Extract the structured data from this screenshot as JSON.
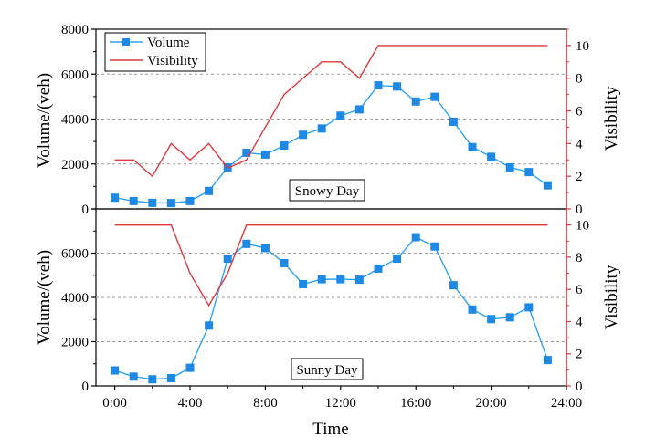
{
  "chart_data": {
    "type": "line",
    "xlabel": "Time",
    "x_tick_labels": [
      "0:00",
      "4:00",
      "8:00",
      "12:00",
      "16:00",
      "20:00",
      "24:00"
    ],
    "x": [
      0,
      1,
      2,
      3,
      4,
      5,
      6,
      7,
      8,
      9,
      10,
      11,
      12,
      13,
      14,
      15,
      16,
      17,
      18,
      19,
      20,
      21,
      22,
      23
    ],
    "xlim": [
      -1,
      24
    ],
    "legend": {
      "placement": "top-left",
      "entries": [
        "Volume",
        "Visibility"
      ]
    },
    "colors": {
      "volume": "#2ea2f0",
      "volume_marker": "#1e88e5",
      "visibility": "#e0383e",
      "grid": "#9e9e9e"
    },
    "panels": [
      {
        "label": "Snowy Day",
        "ylabel_left": "Volume/(veh)",
        "ylabel_right": "Visibility",
        "ylim_left": [
          0,
          8000
        ],
        "ylim_right": [
          0,
          11
        ],
        "left_ticks": [
          "0",
          "2000",
          "4000",
          "6000",
          "8000"
        ],
        "right_ticks": [
          "0",
          "2",
          "4",
          "6",
          "8",
          "10"
        ],
        "grid": true,
        "series": [
          {
            "name": "Volume",
            "axis": "left",
            "marker": "square",
            "values": [
              500,
              350,
              270,
              260,
              350,
              800,
              1850,
              2500,
              2420,
              2820,
              3300,
              3580,
              4150,
              4430,
              5500,
              5450,
              4780,
              4990,
              3880,
              2750,
              2320,
              1850,
              1640,
              1050
            ]
          },
          {
            "name": "Visibility",
            "axis": "right",
            "marker": "none",
            "values": [
              3,
              3,
              2,
              4,
              3,
              4,
              2.5,
              3,
              5,
              7,
              8,
              9,
              9,
              8,
              10,
              10,
              10,
              10,
              10,
              10,
              10,
              10,
              10,
              10
            ]
          }
        ]
      },
      {
        "label": "Sunny Day",
        "ylabel_left": "Volume/(veh)",
        "ylabel_right": "Visibility",
        "ylim_left": [
          0,
          8000
        ],
        "ylim_right": [
          0,
          11
        ],
        "left_ticks": [
          "0",
          "2000",
          "4000",
          "6000",
          "8000"
        ],
        "right_ticks": [
          "0",
          "2",
          "4",
          "6",
          "8",
          "10"
        ],
        "grid": true,
        "series": [
          {
            "name": "Volume",
            "axis": "left",
            "marker": "square",
            "values": [
              700,
              420,
              300,
              350,
              820,
              2730,
              5750,
              6420,
              6230,
              5550,
              4600,
              4820,
              4820,
              4800,
              5300,
              5750,
              6720,
              6300,
              4550,
              3450,
              3020,
              3100,
              3550,
              1170
            ]
          },
          {
            "name": "Visibility",
            "axis": "right",
            "marker": "none",
            "values": [
              10,
              10,
              10,
              10,
              7,
              5,
              7,
              10,
              10,
              10,
              10,
              10,
              10,
              10,
              10,
              10,
              10,
              10,
              10,
              10,
              10,
              10,
              10,
              10
            ]
          }
        ]
      }
    ]
  }
}
